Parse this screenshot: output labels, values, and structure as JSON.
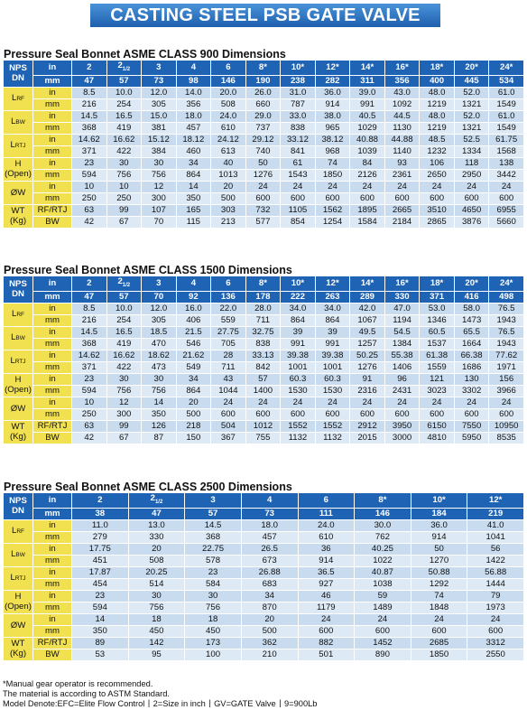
{
  "title": "CASTING STEEL PSB GATE VALVE",
  "tables": [
    {
      "title": "Pressure Seal Bonnet ASME CLASS 900 Dimensions",
      "head_label": "NPS\nDN",
      "sizes": [
        "2",
        "2 1/2",
        "3",
        "4",
        "6",
        "8*",
        "10*",
        "12*",
        "14*",
        "16*",
        "18*",
        "20*",
        "24*"
      ],
      "dn": [
        "47",
        "57",
        "73",
        "98",
        "146",
        "190",
        "238",
        "282",
        "311",
        "356",
        "400",
        "445",
        "534"
      ],
      "groups": [
        {
          "label": "L_RF",
          "rows": [
            {
              "unit": "in",
              "vals": [
                "8.5",
                "10.0",
                "12.0",
                "14.0",
                "20.0",
                "26.0",
                "31.0",
                "36.0",
                "39.0",
                "43.0",
                "48.0",
                "52.0",
                "61.0"
              ]
            },
            {
              "unit": "mm",
              "vals": [
                "216",
                "254",
                "305",
                "356",
                "508",
                "660",
                "787",
                "914",
                "991",
                "1092",
                "1219",
                "1321",
                "1549"
              ]
            }
          ]
        },
        {
          "label": "L_BW",
          "rows": [
            {
              "unit": "in",
              "vals": [
                "14.5",
                "16.5",
                "15.0",
                "18.0",
                "24.0",
                "29.0",
                "33.0",
                "38.0",
                "40.5",
                "44.5",
                "48.0",
                "52.0",
                "61.0"
              ]
            },
            {
              "unit": "mm",
              "vals": [
                "368",
                "419",
                "381",
                "457",
                "610",
                "737",
                "838",
                "965",
                "1029",
                "1130",
                "1219",
                "1321",
                "1549"
              ]
            }
          ]
        },
        {
          "label": "L_RTJ",
          "rows": [
            {
              "unit": "in",
              "vals": [
                "14.62",
                "16.62",
                "15.12",
                "18.12",
                "24.12",
                "29.12",
                "33.12",
                "38.12",
                "40.88",
                "44.88",
                "48.5",
                "52.5",
                "61.75"
              ]
            },
            {
              "unit": "mm",
              "vals": [
                "371",
                "422",
                "384",
                "460",
                "613",
                "740",
                "841",
                "968",
                "1039",
                "1140",
                "1232",
                "1334",
                "1568"
              ]
            }
          ]
        },
        {
          "label": "H\n(Open)",
          "rows": [
            {
              "unit": "in",
              "vals": [
                "23",
                "30",
                "30",
                "34",
                "40",
                "50",
                "61",
                "74",
                "84",
                "93",
                "106",
                "118",
                "138"
              ]
            },
            {
              "unit": "mm",
              "vals": [
                "594",
                "756",
                "756",
                "864",
                "1013",
                "1276",
                "1543",
                "1850",
                "2126",
                "2361",
                "2650",
                "2950",
                "3442"
              ]
            }
          ]
        },
        {
          "label": "ØW",
          "rows": [
            {
              "unit": "in",
              "vals": [
                "10",
                "10",
                "12",
                "14",
                "20",
                "24",
                "24",
                "24",
                "24",
                "24",
                "24",
                "24",
                "24"
              ]
            },
            {
              "unit": "mm",
              "vals": [
                "250",
                "250",
                "300",
                "350",
                "500",
                "600",
                "600",
                "600",
                "600",
                "600",
                "600",
                "600",
                "600"
              ]
            }
          ]
        },
        {
          "label": "WT\n(Kg)",
          "rows": [
            {
              "unit": "RF/RTJ",
              "vals": [
                "63",
                "99",
                "107",
                "165",
                "303",
                "732",
                "1105",
                "1562",
                "1895",
                "2665",
                "3510",
                "4650",
                "6955"
              ]
            },
            {
              "unit": "BW",
              "vals": [
                "42",
                "67",
                "70",
                "115",
                "213",
                "577",
                "854",
                "1254",
                "1584",
                "2184",
                "2865",
                "3876",
                "5660"
              ]
            }
          ]
        }
      ]
    },
    {
      "title": "Pressure Seal Bonnet ASME CLASS 1500 Dimensions",
      "head_label": "NPS\nDN",
      "sizes": [
        "2",
        "2 1/2",
        "3",
        "4",
        "6",
        "8*",
        "10*",
        "12*",
        "14*",
        "16*",
        "18*",
        "20*",
        "24*"
      ],
      "dn": [
        "47",
        "57",
        "70",
        "92",
        "136",
        "178",
        "222",
        "263",
        "289",
        "330",
        "371",
        "416",
        "498"
      ],
      "groups": [
        {
          "label": "L_RF",
          "rows": [
            {
              "unit": "in",
              "vals": [
                "8.5",
                "10.0",
                "12.0",
                "16.0",
                "22.0",
                "28.0",
                "34.0",
                "34.0",
                "42.0",
                "47.0",
                "53.0",
                "58.0",
                "76.5"
              ]
            },
            {
              "unit": "mm",
              "vals": [
                "216",
                "254",
                "305",
                "406",
                "559",
                "711",
                "864",
                "864",
                "1067",
                "1194",
                "1346",
                "1473",
                "1943"
              ]
            }
          ]
        },
        {
          "label": "L_BW",
          "rows": [
            {
              "unit": "in",
              "vals": [
                "14.5",
                "16.5",
                "18.5",
                "21.5",
                "27.75",
                "32.75",
                "39",
                "39",
                "49.5",
                "54.5",
                "60.5",
                "65.5",
                "76.5"
              ]
            },
            {
              "unit": "mm",
              "vals": [
                "368",
                "419",
                "470",
                "546",
                "705",
                "838",
                "991",
                "991",
                "1257",
                "1384",
                "1537",
                "1664",
                "1943"
              ]
            }
          ]
        },
        {
          "label": "L_RTJ",
          "rows": [
            {
              "unit": "in",
              "vals": [
                "14.62",
                "16.62",
                "18.62",
                "21.62",
                "28",
                "33.13",
                "39.38",
                "39.38",
                "50.25",
                "55.38",
                "61.38",
                "66.38",
                "77.62"
              ]
            },
            {
              "unit": "mm",
              "vals": [
                "371",
                "422",
                "473",
                "549",
                "711",
                "842",
                "1001",
                "1001",
                "1276",
                "1406",
                "1559",
                "1686",
                "1971"
              ]
            }
          ]
        },
        {
          "label": "H\n(Open)",
          "rows": [
            {
              "unit": "in",
              "vals": [
                "23",
                "30",
                "30",
                "34",
                "43",
                "57",
                "60.3",
                "60.3",
                "91",
                "96",
                "121",
                "130",
                "156"
              ]
            },
            {
              "unit": "mm",
              "vals": [
                "594",
                "756",
                "756",
                "864",
                "1044",
                "1400",
                "1530",
                "1530",
                "2316",
                "2431",
                "3023",
                "3302",
                "3966"
              ]
            }
          ]
        },
        {
          "label": "ØW",
          "rows": [
            {
              "unit": "in",
              "vals": [
                "10",
                "12",
                "14",
                "20",
                "24",
                "24",
                "24",
                "24",
                "24",
                "24",
                "24",
                "24",
                "24"
              ]
            },
            {
              "unit": "mm",
              "vals": [
                "250",
                "300",
                "350",
                "500",
                "600",
                "600",
                "600",
                "600",
                "600",
                "600",
                "600",
                "600",
                "600"
              ]
            }
          ]
        },
        {
          "label": "WT\n(Kg)",
          "rows": [
            {
              "unit": "RF/RTJ",
              "vals": [
                "63",
                "99",
                "126",
                "218",
                "504",
                "1012",
                "1552",
                "1552",
                "2912",
                "3950",
                "6150",
                "7550",
                "10950"
              ]
            },
            {
              "unit": "BW",
              "vals": [
                "42",
                "67",
                "87",
                "150",
                "367",
                "755",
                "1132",
                "1132",
                "2015",
                "3000",
                "4810",
                "5950",
                "8535"
              ]
            }
          ]
        }
      ]
    },
    {
      "title": "Pressure Seal Bonnet ASME CLASS 2500 Dimensions",
      "head_label": "NPS\nDN",
      "sizes": [
        "2",
        "2 1/2",
        "3",
        "4",
        "6",
        "8*",
        "10*",
        "12*"
      ],
      "dn": [
        "38",
        "47",
        "57",
        "73",
        "111",
        "146",
        "184",
        "219"
      ],
      "groups": [
        {
          "label": "L_RF",
          "rows": [
            {
              "unit": "in",
              "vals": [
                "11.0",
                "13.0",
                "14.5",
                "18.0",
                "24.0",
                "30.0",
                "36.0",
                "41.0"
              ]
            },
            {
              "unit": "mm",
              "vals": [
                "279",
                "330",
                "368",
                "457",
                "610",
                "762",
                "914",
                "1041"
              ]
            }
          ]
        },
        {
          "label": "L_BW",
          "rows": [
            {
              "unit": "in",
              "vals": [
                "17.75",
                "20",
                "22.75",
                "26.5",
                "36",
                "40.25",
                "50",
                "56"
              ]
            },
            {
              "unit": "mm",
              "vals": [
                "451",
                "508",
                "578",
                "673",
                "914",
                "1022",
                "1270",
                "1422"
              ]
            }
          ]
        },
        {
          "label": "L_RTJ",
          "rows": [
            {
              "unit": "in",
              "vals": [
                "17.87",
                "20.25",
                "23",
                "26.88",
                "36.5",
                "40.87",
                "50.88",
                "56.88"
              ]
            },
            {
              "unit": "mm",
              "vals": [
                "454",
                "514",
                "584",
                "683",
                "927",
                "1038",
                "1292",
                "1444"
              ]
            }
          ]
        },
        {
          "label": "H\n(Open)",
          "rows": [
            {
              "unit": "in",
              "vals": [
                "23",
                "30",
                "30",
                "34",
                "46",
                "59",
                "74",
                "79"
              ]
            },
            {
              "unit": "mm",
              "vals": [
                "594",
                "756",
                "756",
                "870",
                "1179",
                "1489",
                "1848",
                "1973"
              ]
            }
          ]
        },
        {
          "label": "ØW",
          "rows": [
            {
              "unit": "in",
              "vals": [
                "14",
                "18",
                "18",
                "20",
                "24",
                "24",
                "24",
                "24"
              ]
            },
            {
              "unit": "mm",
              "vals": [
                "350",
                "450",
                "450",
                "500",
                "600",
                "600",
                "600",
                "600"
              ]
            }
          ]
        },
        {
          "label": "WT\n(Kg)",
          "rows": [
            {
              "unit": "RF/RTJ",
              "vals": [
                "89",
                "142",
                "173",
                "362",
                "882",
                "1452",
                "2685",
                "3312"
              ]
            },
            {
              "unit": "BW",
              "vals": [
                "53",
                "95",
                "100",
                "210",
                "501",
                "890",
                "1850",
                "2550"
              ]
            }
          ]
        }
      ]
    }
  ],
  "notes": [
    "*Manual gear operator is recommended.",
    "The material is according to ASTM Standard.",
    "Model Denote:EFC=Elite Flow Control丨2=Size in inch丨GV=GATE Valve丨9=900Lb"
  ],
  "colors": {
    "header_blue": "#1f63b4",
    "label_yellow": "#f1e04f",
    "cell_blue_dark": "#c9dcef",
    "cell_blue_light": "#dde9f5"
  }
}
